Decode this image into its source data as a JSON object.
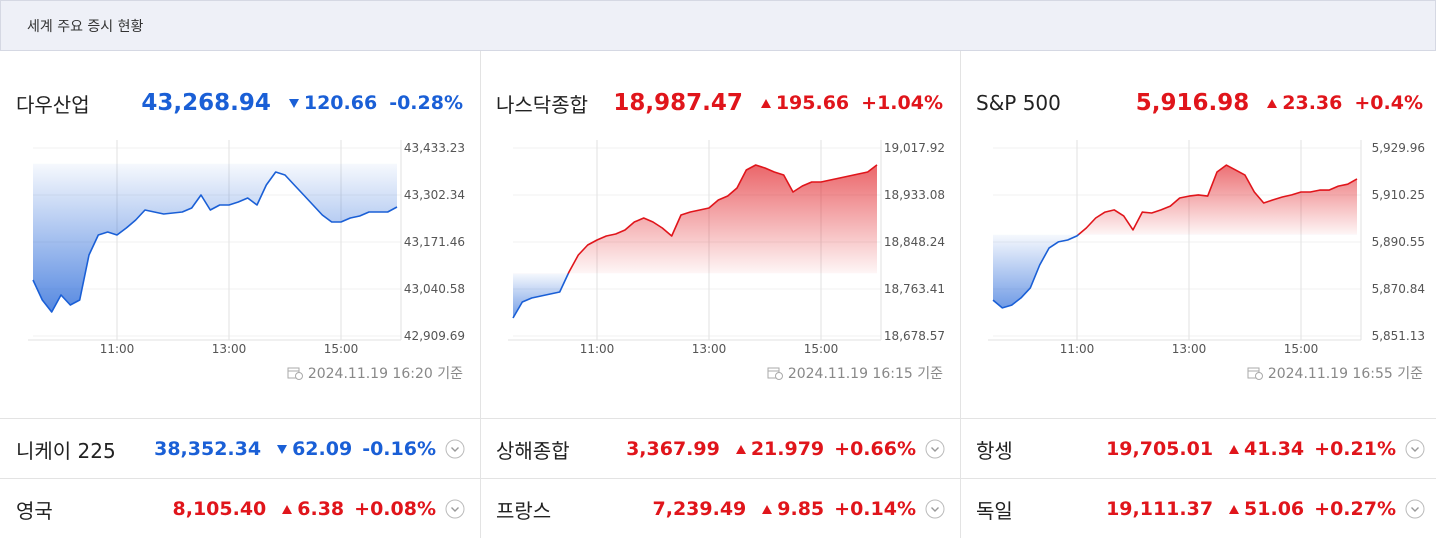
{
  "header": {
    "title": "세계 주요 증시 현황"
  },
  "colors": {
    "up": "#e0151b",
    "down": "#1a5fd6"
  },
  "panels": [
    {
      "name": "다우산업",
      "value": "43,268.94",
      "change": "120.66",
      "percent": "-0.28%",
      "direction": "down",
      "timestamp": "2024.11.19 16:20 기준"
    },
    {
      "name": "나스닥종합",
      "value": "18,987.47",
      "change": "195.66",
      "percent": "+1.04%",
      "direction": "up",
      "timestamp": "2024.11.19 16:15 기준"
    },
    {
      "name": "S&P 500",
      "value": "5,916.98",
      "change": "23.36",
      "percent": "+0.4%",
      "direction": "up",
      "timestamp": "2024.11.19 16:55 기준"
    }
  ],
  "rows": [
    [
      {
        "name": "니케이 225",
        "value": "38,352.34",
        "change": "62.09",
        "percent": "-0.16%",
        "direction": "down"
      },
      {
        "name": "상해종합",
        "value": "3,367.99",
        "change": "21.979",
        "percent": "+0.66%",
        "direction": "up"
      },
      {
        "name": "항셍",
        "value": "19,705.01",
        "change": "41.34",
        "percent": "+0.21%",
        "direction": "up"
      }
    ],
    [
      {
        "name": "영국",
        "value": "8,105.40",
        "change": "6.38",
        "percent": "+0.08%",
        "direction": "up"
      },
      {
        "name": "프랑스",
        "value": "7,239.49",
        "change": "9.85",
        "percent": "+0.14%",
        "direction": "up"
      },
      {
        "name": "독일",
        "value": "19,111.37",
        "change": "51.06",
        "percent": "+0.27%",
        "direction": "up"
      }
    ]
  ],
  "chart_data": [
    {
      "type": "line",
      "x": [
        "09:30",
        "09:40",
        "09:50",
        "10:00",
        "10:10",
        "10:20",
        "10:30",
        "10:40",
        "10:50",
        "11:00",
        "11:10",
        "11:20",
        "11:30",
        "11:40",
        "11:50",
        "12:00",
        "12:10",
        "12:20",
        "12:30",
        "12:40",
        "12:50",
        "13:00",
        "13:10",
        "13:20",
        "13:30",
        "13:40",
        "13:50",
        "14:00",
        "14:10",
        "14:20",
        "14:30",
        "14:40",
        "14:50",
        "15:00",
        "15:10",
        "15:20",
        "15:30",
        "15:40",
        "15:50",
        "16:00"
      ],
      "values": [
        43065.6,
        43009.9,
        42976.5,
        43023.8,
        42996.0,
        43009.9,
        43135.2,
        43190.9,
        43199.3,
        43190.9,
        43210.4,
        43232.7,
        43260.5,
        43255.0,
        43249.4,
        43252.2,
        43255.0,
        43266.1,
        43302.3,
        43260.5,
        43274.5,
        43274.5,
        43282.8,
        43294.0,
        43274.5,
        43330.2,
        43366.4,
        43358.0,
        43330.2,
        43302.3,
        43274.5,
        43246.6,
        43227.1,
        43227.1,
        43238.3,
        43243.8,
        43255.0,
        43255.0,
        43255.0,
        43268.9
      ],
      "baseline": 43389.6,
      "xlim": [
        "09:30",
        "16:00"
      ],
      "xticks": [
        "11:00",
        "13:00",
        "15:00"
      ],
      "ylim": [
        42909.69,
        43433.23
      ],
      "yticks": [
        {
          "value": 42909.69,
          "label": "42,909.69"
        },
        {
          "value": 43040.58,
          "label": "43,040.58"
        },
        {
          "value": 43171.46,
          "label": "43,171.46"
        },
        {
          "value": 43302.34,
          "label": "43,302.34"
        },
        {
          "value": 43433.23,
          "label": "43,433.23"
        }
      ],
      "grid": true
    },
    {
      "type": "line",
      "x": [
        "09:30",
        "09:40",
        "09:50",
        "10:00",
        "10:10",
        "10:20",
        "10:30",
        "10:40",
        "10:50",
        "11:00",
        "11:10",
        "11:20",
        "11:30",
        "11:40",
        "11:50",
        "12:00",
        "12:10",
        "12:20",
        "12:30",
        "12:40",
        "12:50",
        "13:00",
        "13:10",
        "13:20",
        "13:30",
        "13:40",
        "13:50",
        "14:00",
        "14:10",
        "14:20",
        "14:30",
        "14:40",
        "14:50",
        "15:00",
        "15:10",
        "15:20",
        "15:30",
        "15:40",
        "15:50",
        "16:00"
      ],
      "values": [
        18711.0,
        18739.9,
        18747.1,
        18750.7,
        18754.4,
        18758.0,
        18794.1,
        18824.8,
        18842.8,
        18851.8,
        18859.1,
        18862.7,
        18869.9,
        18884.3,
        18891.5,
        18884.3,
        18873.5,
        18859.1,
        18897.0,
        18902.4,
        18906.0,
        18909.6,
        18924.0,
        18931.3,
        18945.7,
        18978.2,
        18987.2,
        18981.8,
        18974.6,
        18969.2,
        18938.5,
        18949.3,
        18956.5,
        18956.5,
        18960.1,
        18963.7,
        18967.4,
        18971.0,
        18974.6,
        18987.5
      ],
      "baseline": 18791.8,
      "xlim": [
        "09:30",
        "16:00"
      ],
      "xticks": [
        "11:00",
        "13:00",
        "15:00"
      ],
      "ylim": [
        18678.57,
        19017.92
      ],
      "yticks": [
        {
          "value": 18678.57,
          "label": "18,678.57"
        },
        {
          "value": 18763.41,
          "label": "18,763.41"
        },
        {
          "value": 18848.24,
          "label": "18,848.24"
        },
        {
          "value": 18933.08,
          "label": "18,933.08"
        },
        {
          "value": 19017.92,
          "label": "19,017.92"
        }
      ],
      "grid": true
    },
    {
      "type": "line",
      "x": [
        "09:30",
        "09:40",
        "09:50",
        "10:00",
        "10:10",
        "10:20",
        "10:30",
        "10:40",
        "10:50",
        "11:00",
        "11:10",
        "11:20",
        "11:30",
        "11:40",
        "11:50",
        "12:00",
        "12:10",
        "12:20",
        "12:30",
        "12:40",
        "12:50",
        "13:00",
        "13:10",
        "13:20",
        "13:30",
        "13:40",
        "13:50",
        "14:00",
        "14:10",
        "14:20",
        "14:30",
        "14:40",
        "14:50",
        "15:00",
        "15:10",
        "15:20",
        "15:30",
        "15:40",
        "15:50",
        "16:00"
      ],
      "values": [
        5866.2,
        5862.9,
        5864.1,
        5867.1,
        5871.3,
        5880.9,
        5888.0,
        5890.6,
        5891.4,
        5893.1,
        5896.4,
        5900.6,
        5903.1,
        5904.0,
        5901.5,
        5895.6,
        5903.1,
        5902.7,
        5904.0,
        5905.6,
        5909.0,
        5909.8,
        5910.3,
        5909.8,
        5919.9,
        5922.8,
        5920.7,
        5918.6,
        5911.5,
        5906.9,
        5908.2,
        5909.4,
        5910.3,
        5911.5,
        5911.5,
        5912.3,
        5912.3,
        5914.0,
        5914.8,
        5917.0
      ],
      "baseline": 5893.6,
      "xlim": [
        "09:30",
        "16:00"
      ],
      "xticks": [
        "11:00",
        "13:00",
        "15:00"
      ],
      "ylim": [
        5851.13,
        5929.96
      ],
      "yticks": [
        {
          "value": 5851.13,
          "label": "5,851.13"
        },
        {
          "value": 5870.84,
          "label": "5,870.84"
        },
        {
          "value": 5890.55,
          "label": "5,890.55"
        },
        {
          "value": 5910.25,
          "label": "5,910.25"
        },
        {
          "value": 5929.96,
          "label": "5,929.96"
        }
      ],
      "grid": true
    }
  ]
}
